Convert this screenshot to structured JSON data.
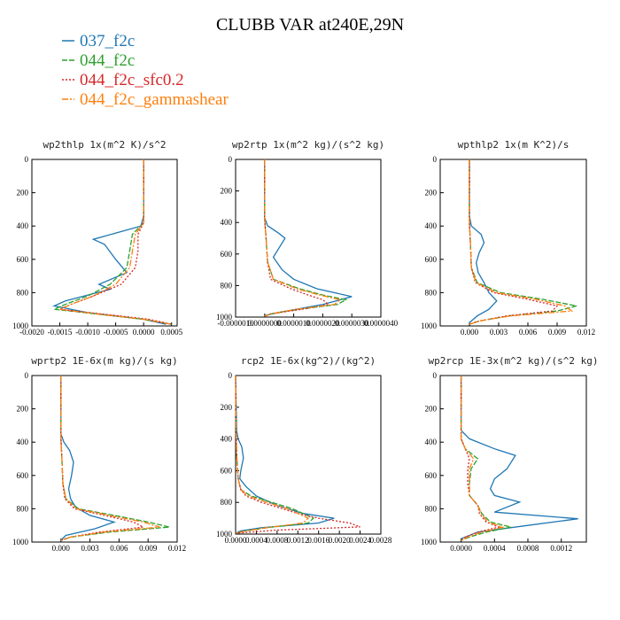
{
  "figure": {
    "title": "CLUBB VAR at240E,29N"
  },
  "legend": [
    {
      "name": "037_f2c",
      "color": "#1f77b4",
      "dash": ""
    },
    {
      "name": "044_f2c",
      "color": "#2ca02c",
      "dash": "6,2"
    },
    {
      "name": "044_f2c_sfc0.2",
      "color": "#d62728",
      "dash": "2,2"
    },
    {
      "name": "044_f2c_gammashear",
      "color": "#ff7f0e",
      "dash": "7,2,2,2"
    }
  ],
  "chart_data": [
    {
      "type": "line",
      "title": "wp2thlp  1x(m^2 K)/s^2",
      "xlim": [
        -0.002,
        0.0006
      ],
      "ylim": [
        1000,
        0
      ],
      "xticks": [
        "-0.0020",
        "-0.0015",
        "-0.0010",
        "-0.0005",
        "0.0000",
        "0.0005"
      ],
      "xtick_values": [
        -0.002,
        -0.0015,
        -0.001,
        -0.0005,
        0.0,
        0.0005
      ],
      "yticks": [
        "0",
        "200",
        "400",
        "600",
        "800",
        "1000"
      ],
      "ytick_values": [
        0,
        200,
        400,
        600,
        800,
        1000
      ],
      "series": [
        {
          "y": [
            0,
            340,
            400,
            480,
            510,
            600,
            680,
            750,
            780,
            850,
            880,
            920,
            960,
            990
          ],
          "x": [
            0,
            0,
            -5e-05,
            -0.0009,
            -0.0007,
            -0.0005,
            -0.0003,
            -0.0008,
            -0.0006,
            -0.0014,
            -0.0016,
            -0.001,
            0,
            0.0004
          ]
        },
        {
          "y": [
            0,
            380,
            450,
            550,
            650,
            750,
            820,
            870,
            900,
            930,
            960,
            990
          ],
          "x": [
            0,
            0,
            -0.0002,
            -0.00025,
            -0.0003,
            -0.0006,
            -0.001,
            -0.0014,
            -0.0016,
            -0.0008,
            0,
            0.0005
          ]
        },
        {
          "y": [
            0,
            380,
            450,
            550,
            650,
            750,
            820,
            870,
            900,
            930,
            960,
            990
          ],
          "x": [
            0,
            0,
            -0.0001,
            -0.0001,
            -0.00015,
            -0.0004,
            -0.0009,
            -0.0013,
            -0.0015,
            -0.0007,
            0.0001,
            0.0005
          ]
        },
        {
          "y": [
            0,
            380,
            450,
            550,
            650,
            750,
            820,
            870,
            900,
            930,
            960,
            990
          ],
          "x": [
            0,
            0,
            -0.00015,
            -0.0002,
            -0.00025,
            -0.0005,
            -0.0009,
            -0.0013,
            -0.0015,
            -0.0008,
            0,
            0.0005
          ]
        }
      ]
    },
    {
      "type": "line",
      "title": "wp2rtp  1x(m^2 kg)/(s^2 kg)",
      "xlim": [
        -1e-06,
        4e-06
      ],
      "ylim": [
        1000,
        0
      ],
      "xticks": [
        "-0.0000010",
        "0.0000000",
        "0.0000010",
        "0.0000020",
        "0.0000030",
        "0.0000040"
      ],
      "xtick_values": [
        -1e-06,
        0,
        1e-06,
        2e-06,
        3e-06,
        4e-06
      ],
      "yticks": [
        "0",
        "200",
        "400",
        "600",
        "800",
        "1000"
      ],
      "ytick_values": [
        0,
        200,
        400,
        600,
        800,
        1000
      ],
      "series": [
        {
          "y": [
            0,
            370,
            420,
            470,
            500,
            560,
            620,
            700,
            760,
            820,
            870,
            920,
            970,
            990
          ],
          "x": [
            0,
            0,
            1e-07,
            5e-07,
            7e-07,
            5e-07,
            3e-07,
            6e-07,
            1e-06,
            1.8e-06,
            3e-06,
            2e-06,
            5e-07,
            0
          ]
        },
        {
          "y": [
            0,
            380,
            500,
            650,
            760,
            820,
            860,
            890,
            920,
            950,
            980,
            995
          ],
          "x": [
            0,
            0,
            5e-08,
            1e-07,
            3e-07,
            1.2e-06,
            2e-06,
            2.8e-06,
            2.5e-06,
            1.2e-06,
            2e-07,
            0
          ]
        },
        {
          "y": [
            0,
            380,
            500,
            650,
            760,
            820,
            860,
            890,
            920,
            950,
            980,
            995
          ],
          "x": [
            0,
            0,
            5e-08,
            1e-07,
            2e-07,
            9e-07,
            1.5e-06,
            2e-06,
            2.2e-06,
            1.3e-06,
            2e-07,
            0
          ]
        },
        {
          "y": [
            0,
            380,
            500,
            650,
            760,
            820,
            860,
            890,
            920,
            950,
            980,
            995
          ],
          "x": [
            0,
            0,
            5e-08,
            1e-07,
            3e-07,
            1.1e-06,
            1.9e-06,
            2.6e-06,
            2.4e-06,
            1.1e-06,
            2e-07,
            0
          ]
        }
      ]
    },
    {
      "type": "line",
      "title": "wpthlp2  1x(m K^2)/s",
      "xlim": [
        -0.003,
        0.012
      ],
      "ylim": [
        1000,
        0
      ],
      "xticks": [
        "0.000",
        "0.003",
        "0.006",
        "0.009",
        "0.012"
      ],
      "xtick_values": [
        0,
        0.003,
        0.006,
        0.009,
        0.012
      ],
      "yticks": [
        "0",
        "200",
        "400",
        "600",
        "800",
        "1000"
      ],
      "ytick_values": [
        0,
        200,
        400,
        600,
        800,
        1000
      ],
      "series": [
        {
          "y": [
            0,
            340,
            400,
            450,
            500,
            560,
            620,
            680,
            740,
            800,
            850,
            900,
            940,
            980
          ],
          "x": [
            0,
            0,
            0.0002,
            0.0012,
            0.0015,
            0.001,
            0.0007,
            0.0009,
            0.0015,
            0.002,
            0.0028,
            0.002,
            0.0008,
            0
          ]
        },
        {
          "y": [
            0,
            380,
            500,
            650,
            740,
            800,
            840,
            880,
            910,
            940,
            970,
            990
          ],
          "x": [
            0,
            0,
            0.0001,
            0.0002,
            0.0008,
            0.0032,
            0.0075,
            0.011,
            0.009,
            0.004,
            0.001,
            0
          ]
        },
        {
          "y": [
            0,
            380,
            500,
            650,
            740,
            800,
            840,
            880,
            910,
            940,
            970,
            990
          ],
          "x": [
            0,
            0,
            0.0001,
            0.0002,
            0.0006,
            0.0025,
            0.006,
            0.009,
            0.0085,
            0.0038,
            0.001,
            0
          ]
        },
        {
          "y": [
            0,
            380,
            500,
            650,
            740,
            800,
            840,
            880,
            910,
            940,
            970,
            990
          ],
          "x": [
            0,
            0,
            0.0001,
            0.0002,
            0.0007,
            0.0028,
            0.0068,
            0.0098,
            0.0105,
            0.0042,
            0.001,
            0
          ]
        }
      ]
    },
    {
      "type": "line",
      "title": "wprtp2  1E-6x(m kg)/(s kg)",
      "xlim": [
        -0.003,
        0.012
      ],
      "ylim": [
        1000,
        0
      ],
      "xticks": [
        "0.000",
        "0.003",
        "0.006",
        "0.009",
        "0.012"
      ],
      "xtick_values": [
        0,
        0.003,
        0.006,
        0.009,
        0.012
      ],
      "yticks": [
        "0",
        "200",
        "400",
        "600",
        "800",
        "1000"
      ],
      "ytick_values": [
        0,
        200,
        400,
        600,
        800,
        1000
      ],
      "series": [
        {
          "y": [
            0,
            350,
            400,
            450,
            520,
            600,
            680,
            740,
            790,
            840,
            880,
            920,
            960,
            990
          ],
          "x": [
            0,
            0,
            0.0003,
            0.0009,
            0.0013,
            0.0011,
            0.0008,
            0.001,
            0.0015,
            0.003,
            0.0055,
            0.0035,
            0.0005,
            0
          ]
        },
        {
          "y": [
            0,
            380,
            500,
            650,
            740,
            800,
            840,
            880,
            910,
            940,
            970,
            990
          ],
          "x": [
            0,
            0,
            0.0001,
            0.0002,
            0.0005,
            0.0018,
            0.0055,
            0.009,
            0.0112,
            0.005,
            0.001,
            0
          ]
        },
        {
          "y": [
            0,
            380,
            500,
            650,
            740,
            800,
            840,
            880,
            910,
            940,
            970,
            990
          ],
          "x": [
            0,
            0,
            0.0001,
            0.0002,
            0.0004,
            0.0014,
            0.0045,
            0.0075,
            0.0085,
            0.004,
            0.001,
            0
          ]
        },
        {
          "y": [
            0,
            380,
            500,
            650,
            740,
            800,
            840,
            880,
            910,
            940,
            970,
            990
          ],
          "x": [
            0,
            0,
            0.0001,
            0.0002,
            0.0005,
            0.0016,
            0.005,
            0.0085,
            0.0102,
            0.0045,
            0.001,
            0
          ]
        }
      ]
    },
    {
      "type": "line",
      "title": "rcp2  1E-6x(kg^2)/(kg^2)",
      "xlim": [
        0,
        0.0028
      ],
      "ylim": [
        1000,
        0
      ],
      "xticks": [
        "0.0000",
        "0.0004",
        "0.0008",
        "0.0012",
        "0.0016",
        "0.0020",
        "0.0024",
        "0.0028"
      ],
      "xtick_values": [
        0,
        0.0004,
        0.0008,
        0.0012,
        0.0016,
        0.002,
        0.0024,
        0.0028
      ],
      "yticks": [
        "0",
        "200",
        "400",
        "600",
        "800",
        "1000"
      ],
      "ytick_values": [
        0,
        200,
        400,
        600,
        800,
        1000
      ],
      "series": [
        {
          "y": [
            0,
            350,
            400,
            450,
            520,
            600,
            650,
            700,
            760,
            820,
            870,
            900,
            930,
            960,
            980,
            995
          ],
          "x": [
            0,
            2e-05,
            5e-05,
            0.00012,
            0.00015,
            0.0001,
            8e-05,
            0.0002,
            0.0004,
            0.0008,
            0.0013,
            0.0019,
            0.0016,
            0.0005,
            0.0001,
            0
          ]
        },
        {
          "y": [
            0,
            380,
            500,
            650,
            720,
            760,
            800,
            840,
            870,
            900,
            930,
            960,
            980,
            995
          ],
          "x": [
            0,
            1e-05,
            2e-05,
            5e-05,
            0.0001,
            0.0003,
            0.0007,
            0.0011,
            0.0013,
            0.0015,
            0.0014,
            0.0006,
            0.0002,
            0
          ]
        },
        {
          "y": [
            0,
            380,
            500,
            650,
            720,
            760,
            800,
            840,
            870,
            900,
            930,
            955,
            975,
            995
          ],
          "x": [
            0,
            1e-05,
            2e-05,
            5e-05,
            0.0001,
            0.0002,
            0.0005,
            0.0009,
            0.0012,
            0.0016,
            0.0022,
            0.0024,
            0.0008,
            0
          ]
        },
        {
          "y": [
            0,
            380,
            500,
            650,
            720,
            760,
            800,
            840,
            870,
            900,
            930,
            960,
            980,
            995
          ],
          "x": [
            0,
            1e-05,
            2e-05,
            5e-05,
            0.0001,
            0.00025,
            0.0006,
            0.001,
            0.0012,
            0.0014,
            0.0013,
            0.0006,
            0.0002,
            0
          ]
        }
      ]
    },
    {
      "type": "line",
      "title": "wp2rcp  1E-3x(m^2 kg)/(s^2 kg)",
      "xlim": [
        -0.00025,
        0.0015
      ],
      "ylim": [
        1000,
        0
      ],
      "xticks": [
        "0.0000",
        "0.0004",
        "0.0008",
        "0.0012"
      ],
      "xtick_values": [
        0,
        0.0004,
        0.0008,
        0.0012
      ],
      "yticks": [
        "0",
        "200",
        "400",
        "600",
        "800",
        "1000"
      ],
      "ytick_values": [
        0,
        200,
        400,
        600,
        800,
        1000
      ],
      "series": [
        {
          "y": [
            0,
            330,
            380,
            440,
            480,
            520,
            560,
            620,
            680,
            720,
            760,
            820,
            860,
            900,
            940,
            980
          ],
          "x": [
            0,
            0,
            0.0001,
            0.0004,
            0.00065,
            0.0006,
            0.00055,
            0.0004,
            0.00035,
            0.0004,
            0.0007,
            0.0004,
            0.0014,
            0.0008,
            0.0002,
            0
          ]
        },
        {
          "y": [
            0,
            380,
            440,
            500,
            560,
            650,
            720,
            780,
            830,
            880,
            910,
            940,
            970,
            990
          ],
          "x": [
            0,
            0,
            5e-05,
            0.0002,
            0.00012,
            0.0001,
            0.0001,
            0.0002,
            0.00025,
            0.00035,
            0.0006,
            0.0003,
            0.0001,
            0
          ]
        },
        {
          "y": [
            0,
            380,
            440,
            500,
            560,
            650,
            720,
            780,
            830,
            880,
            910,
            940,
            970,
            990
          ],
          "x": [
            0,
            0,
            5e-05,
            0.0001,
            8e-05,
            8e-05,
            0.0001,
            0.0002,
            0.00022,
            0.0003,
            0.00045,
            0.0002,
            5e-05,
            0
          ]
        },
        {
          "y": [
            0,
            380,
            440,
            500,
            560,
            650,
            720,
            780,
            830,
            880,
            910,
            940,
            970,
            990
          ],
          "x": [
            0,
            0,
            5e-05,
            0.00015,
            0.0001,
            0.0001,
            0.0001,
            0.0002,
            0.00024,
            0.00032,
            0.0005,
            0.00025,
            8e-05,
            0
          ]
        }
      ]
    }
  ]
}
